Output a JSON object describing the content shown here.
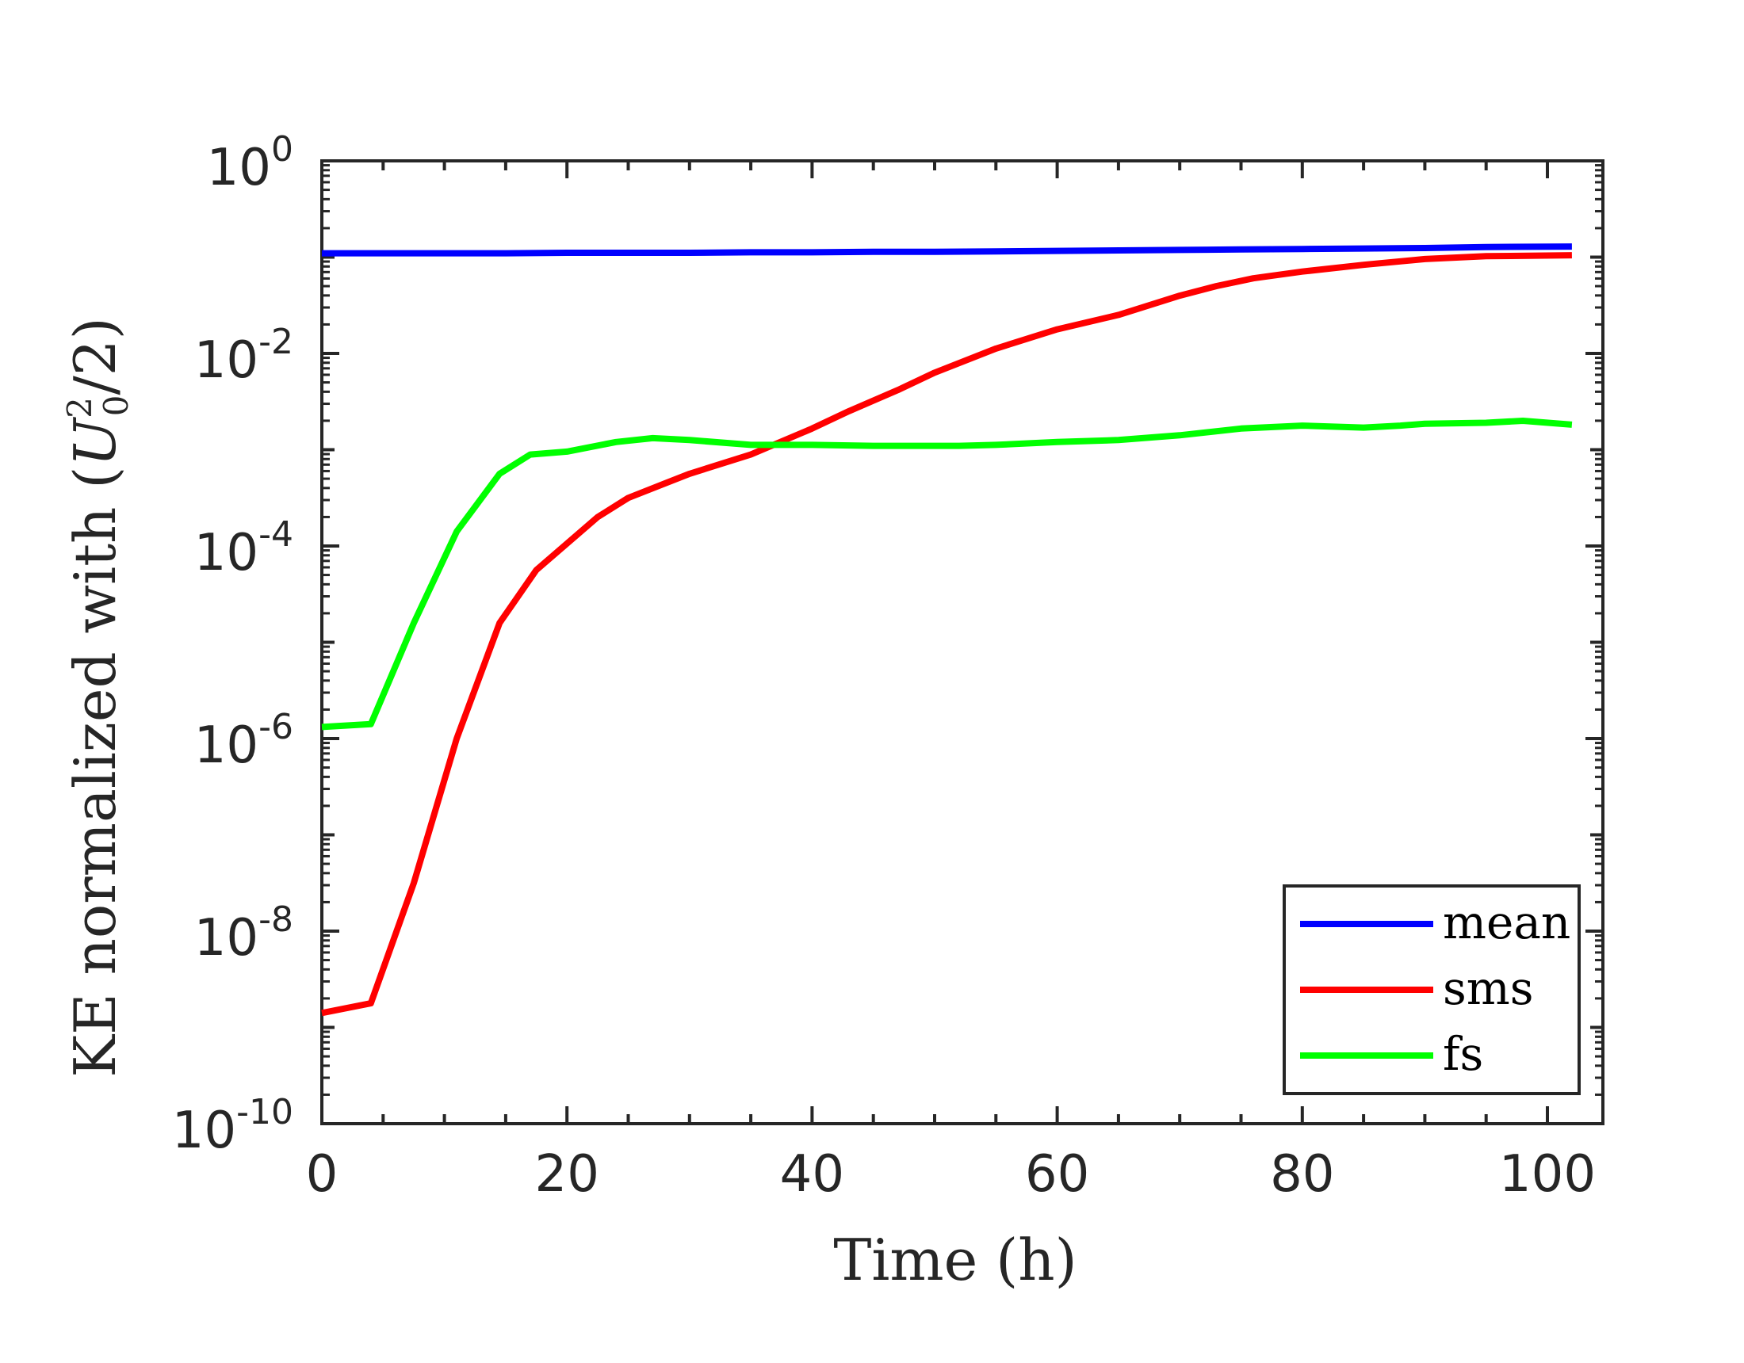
{
  "chart_data": {
    "type": "line",
    "title": "",
    "xlabel": "Time (h)",
    "ylabel": "KE normalized with ",
    "ylabel_math": {
      "open": "(",
      "base": "U",
      "sup": "2",
      "sub": "0",
      "rest": "/2)"
    },
    "xlim": [
      0,
      105
    ],
    "ylim_log10": [
      -10,
      0
    ],
    "yscale": "log",
    "xticks": [
      0,
      20,
      40,
      60,
      80,
      100
    ],
    "xtick_labels": [
      "0",
      "20",
      "40",
      "60",
      "80",
      "100"
    ],
    "yticks": [
      {
        "base": "10",
        "exp": "0",
        "value": 0
      },
      {
        "base": "10",
        "exp": "-2",
        "value": -2
      },
      {
        "base": "10",
        "exp": "-4",
        "value": -4
      },
      {
        "base": "10",
        "exp": "-6",
        "value": -6
      },
      {
        "base": "10",
        "exp": "-8",
        "value": -8
      },
      {
        "base": "10",
        "exp": "-10",
        "value": -10
      }
    ],
    "grid": false,
    "legend_position": "bottom-right",
    "series": [
      {
        "name": "mean",
        "color": "#0000ff",
        "x": [
          0,
          5,
          10,
          15,
          20,
          25,
          30,
          35,
          40,
          45,
          50,
          55,
          60,
          65,
          70,
          75,
          80,
          85,
          90,
          95,
          102
        ],
        "log10y": [
          -0.96,
          -0.96,
          -0.96,
          -0.96,
          -0.955,
          -0.955,
          -0.955,
          -0.95,
          -0.95,
          -0.945,
          -0.945,
          -0.94,
          -0.935,
          -0.93,
          -0.925,
          -0.92,
          -0.915,
          -0.91,
          -0.905,
          -0.895,
          -0.89
        ]
      },
      {
        "name": "sms",
        "color": "#ff0000",
        "x": [
          0,
          4,
          7.5,
          11,
          14.5,
          17.5,
          22.5,
          25,
          28,
          30,
          35,
          40,
          43,
          47,
          50,
          55,
          60,
          65,
          70,
          73,
          76,
          80,
          85,
          90,
          95,
          102
        ],
        "log10y": [
          -8.85,
          -8.75,
          -7.5,
          -6.0,
          -4.8,
          -4.25,
          -3.7,
          -3.5,
          -3.35,
          -3.25,
          -3.05,
          -2.78,
          -2.6,
          -2.38,
          -2.2,
          -1.95,
          -1.75,
          -1.6,
          -1.4,
          -1.3,
          -1.22,
          -1.15,
          -1.08,
          -1.02,
          -0.99,
          -0.98
        ]
      },
      {
        "name": "fs",
        "color": "#00ff00",
        "x": [
          0,
          4,
          7.5,
          11,
          14.5,
          17,
          20,
          24,
          27,
          30,
          35,
          40,
          45,
          50,
          52,
          55,
          60,
          65,
          70,
          75,
          80,
          85,
          88,
          90,
          95,
          98,
          102
        ],
        "log10y": [
          -5.88,
          -5.85,
          -4.8,
          -3.85,
          -3.25,
          -3.05,
          -3.02,
          -2.92,
          -2.88,
          -2.9,
          -2.95,
          -2.95,
          -2.96,
          -2.96,
          -2.96,
          -2.95,
          -2.92,
          -2.9,
          -2.85,
          -2.78,
          -2.75,
          -2.77,
          -2.75,
          -2.73,
          -2.72,
          -2.7,
          -2.74
        ]
      }
    ]
  }
}
